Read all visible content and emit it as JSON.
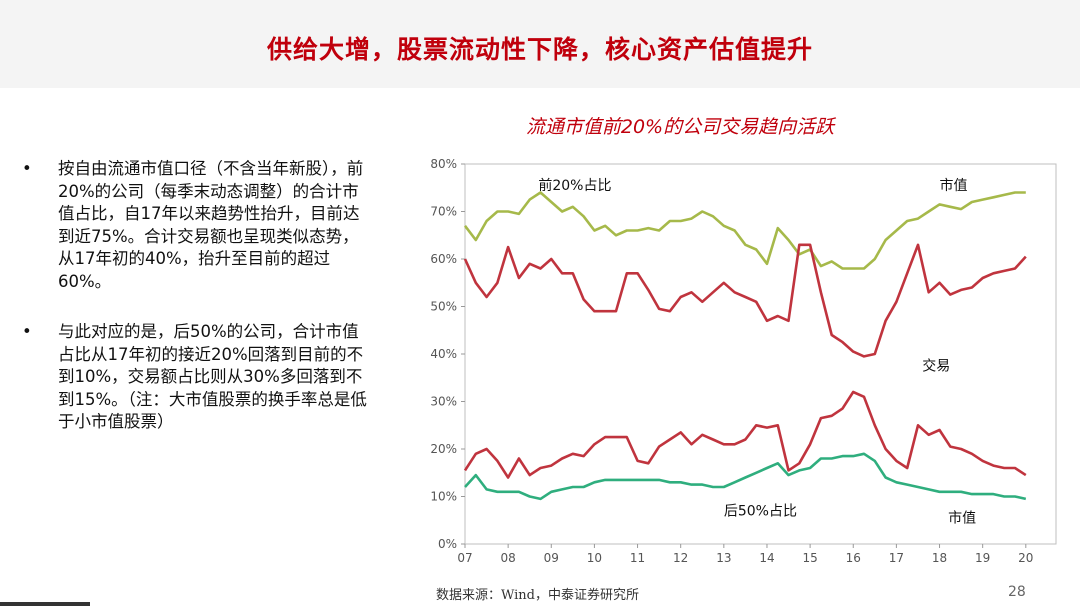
{
  "slide": {
    "title": "供给大增，股票流动性下降，核心资产估值提升",
    "page_number": "28",
    "source": "数据来源：Wind，中泰证券研究所"
  },
  "bullets": [
    {
      "marker": "•",
      "text": "按自由流通市值口径（不含当年新股），前20%的公司（每季末动态调整）的合计市值占比，自17年以来趋势性抬升，目前达到近75%。合计交易额也呈现类似态势，从17年初的40%，抬升至目前的超过60%。"
    },
    {
      "marker": "•",
      "text": "与此对应的是，后50%的公司，合计市值占比从17年初的接近20%回落到目前的不到10%，交易额占比则从30%多回落到不到15%。（注：大市值股票的换手率总是低于小市值股票）"
    }
  ],
  "colors": {
    "title": "#c0000c",
    "top20_cap": "#a6b94a",
    "top20_trade": "#c0343e",
    "bottom50_trade": "#c0343e",
    "bottom50_cap": "#2fae7e"
  },
  "chart_data": {
    "type": "line",
    "title": "流通市值前20%的公司交易趋向活跃",
    "x_start": 2007.0,
    "x_end": 2020.7,
    "x_tick_labels": [
      "07",
      "08",
      "09",
      "10",
      "11",
      "12",
      "13",
      "14",
      "15",
      "16",
      "17",
      "18",
      "19",
      "20"
    ],
    "y_tick_labels": [
      "0%",
      "10%",
      "20%",
      "30%",
      "40%",
      "50%",
      "60%",
      "70%",
      "80%"
    ],
    "ylim": [
      0,
      80
    ],
    "grid": false,
    "annotations": {
      "top_share": "前20%占比",
      "top_cap": "市值",
      "top_trade": "交易",
      "bottom_share": "后50%占比",
      "bottom_cap": "市值"
    },
    "series": [
      {
        "key": "top20_cap",
        "x_start": 2007.0,
        "step": 0.25,
        "values": [
          67,
          64,
          68,
          70,
          70,
          69.5,
          72.5,
          74,
          72,
          70,
          71,
          69,
          66,
          67,
          65,
          66,
          66,
          66.5,
          66,
          68,
          68,
          68.5,
          70,
          69,
          67,
          66,
          63,
          62,
          59,
          66.5,
          64,
          61,
          62,
          58.5,
          59.5,
          58,
          58,
          58,
          60,
          64,
          66,
          68,
          68.5,
          70,
          71.5,
          71,
          70.5,
          72,
          72.5,
          73,
          73.5,
          74,
          74
        ]
      },
      {
        "key": "top20_trade",
        "x_start": 2007.0,
        "step": 0.25,
        "values": [
          60,
          55,
          52,
          55,
          62.5,
          56,
          59,
          58,
          60,
          57,
          57,
          51.5,
          49,
          49,
          49,
          57,
          57,
          53.5,
          49.5,
          49,
          52,
          53,
          51,
          53,
          55,
          53,
          52,
          51,
          47,
          48,
          47,
          63,
          63,
          53,
          44,
          42.5,
          40.5,
          39.5,
          40,
          47,
          51,
          57,
          63,
          53,
          55,
          52.5,
          53.5,
          54,
          56,
          57,
          57.5,
          58,
          60.5
        ]
      },
      {
        "key": "bottom50_trade",
        "x_start": 2007.0,
        "step": 0.25,
        "values": [
          15.5,
          19,
          20,
          17.5,
          14,
          18,
          14.5,
          16,
          16.5,
          18,
          19,
          18.5,
          21,
          22.5,
          22.5,
          22.5,
          17.5,
          17,
          20.5,
          22,
          23.5,
          21,
          23,
          22,
          21,
          21,
          22,
          25,
          24.5,
          25,
          15.5,
          17,
          21,
          26.5,
          27,
          28.5,
          32,
          31,
          25,
          20,
          17.5,
          16,
          25,
          23,
          24,
          20.5,
          20,
          19,
          17.5,
          16.5,
          16,
          16,
          14.5
        ]
      },
      {
        "key": "bottom50_cap",
        "x_start": 2007.0,
        "step": 0.25,
        "values": [
          12,
          14.5,
          11.5,
          11,
          11,
          11,
          10,
          9.5,
          11,
          11.5,
          12,
          12,
          13,
          13.5,
          13.5,
          13.5,
          13.5,
          13.5,
          13.5,
          13,
          13,
          12.5,
          12.5,
          12,
          12,
          13,
          14,
          15,
          16,
          17,
          14.5,
          15.5,
          16,
          18,
          18,
          18.5,
          18.5,
          19,
          17.5,
          14,
          13,
          12.5,
          12,
          11.5,
          11,
          11,
          11,
          10.5,
          10.5,
          10.5,
          10,
          10,
          9.5
        ]
      }
    ]
  }
}
